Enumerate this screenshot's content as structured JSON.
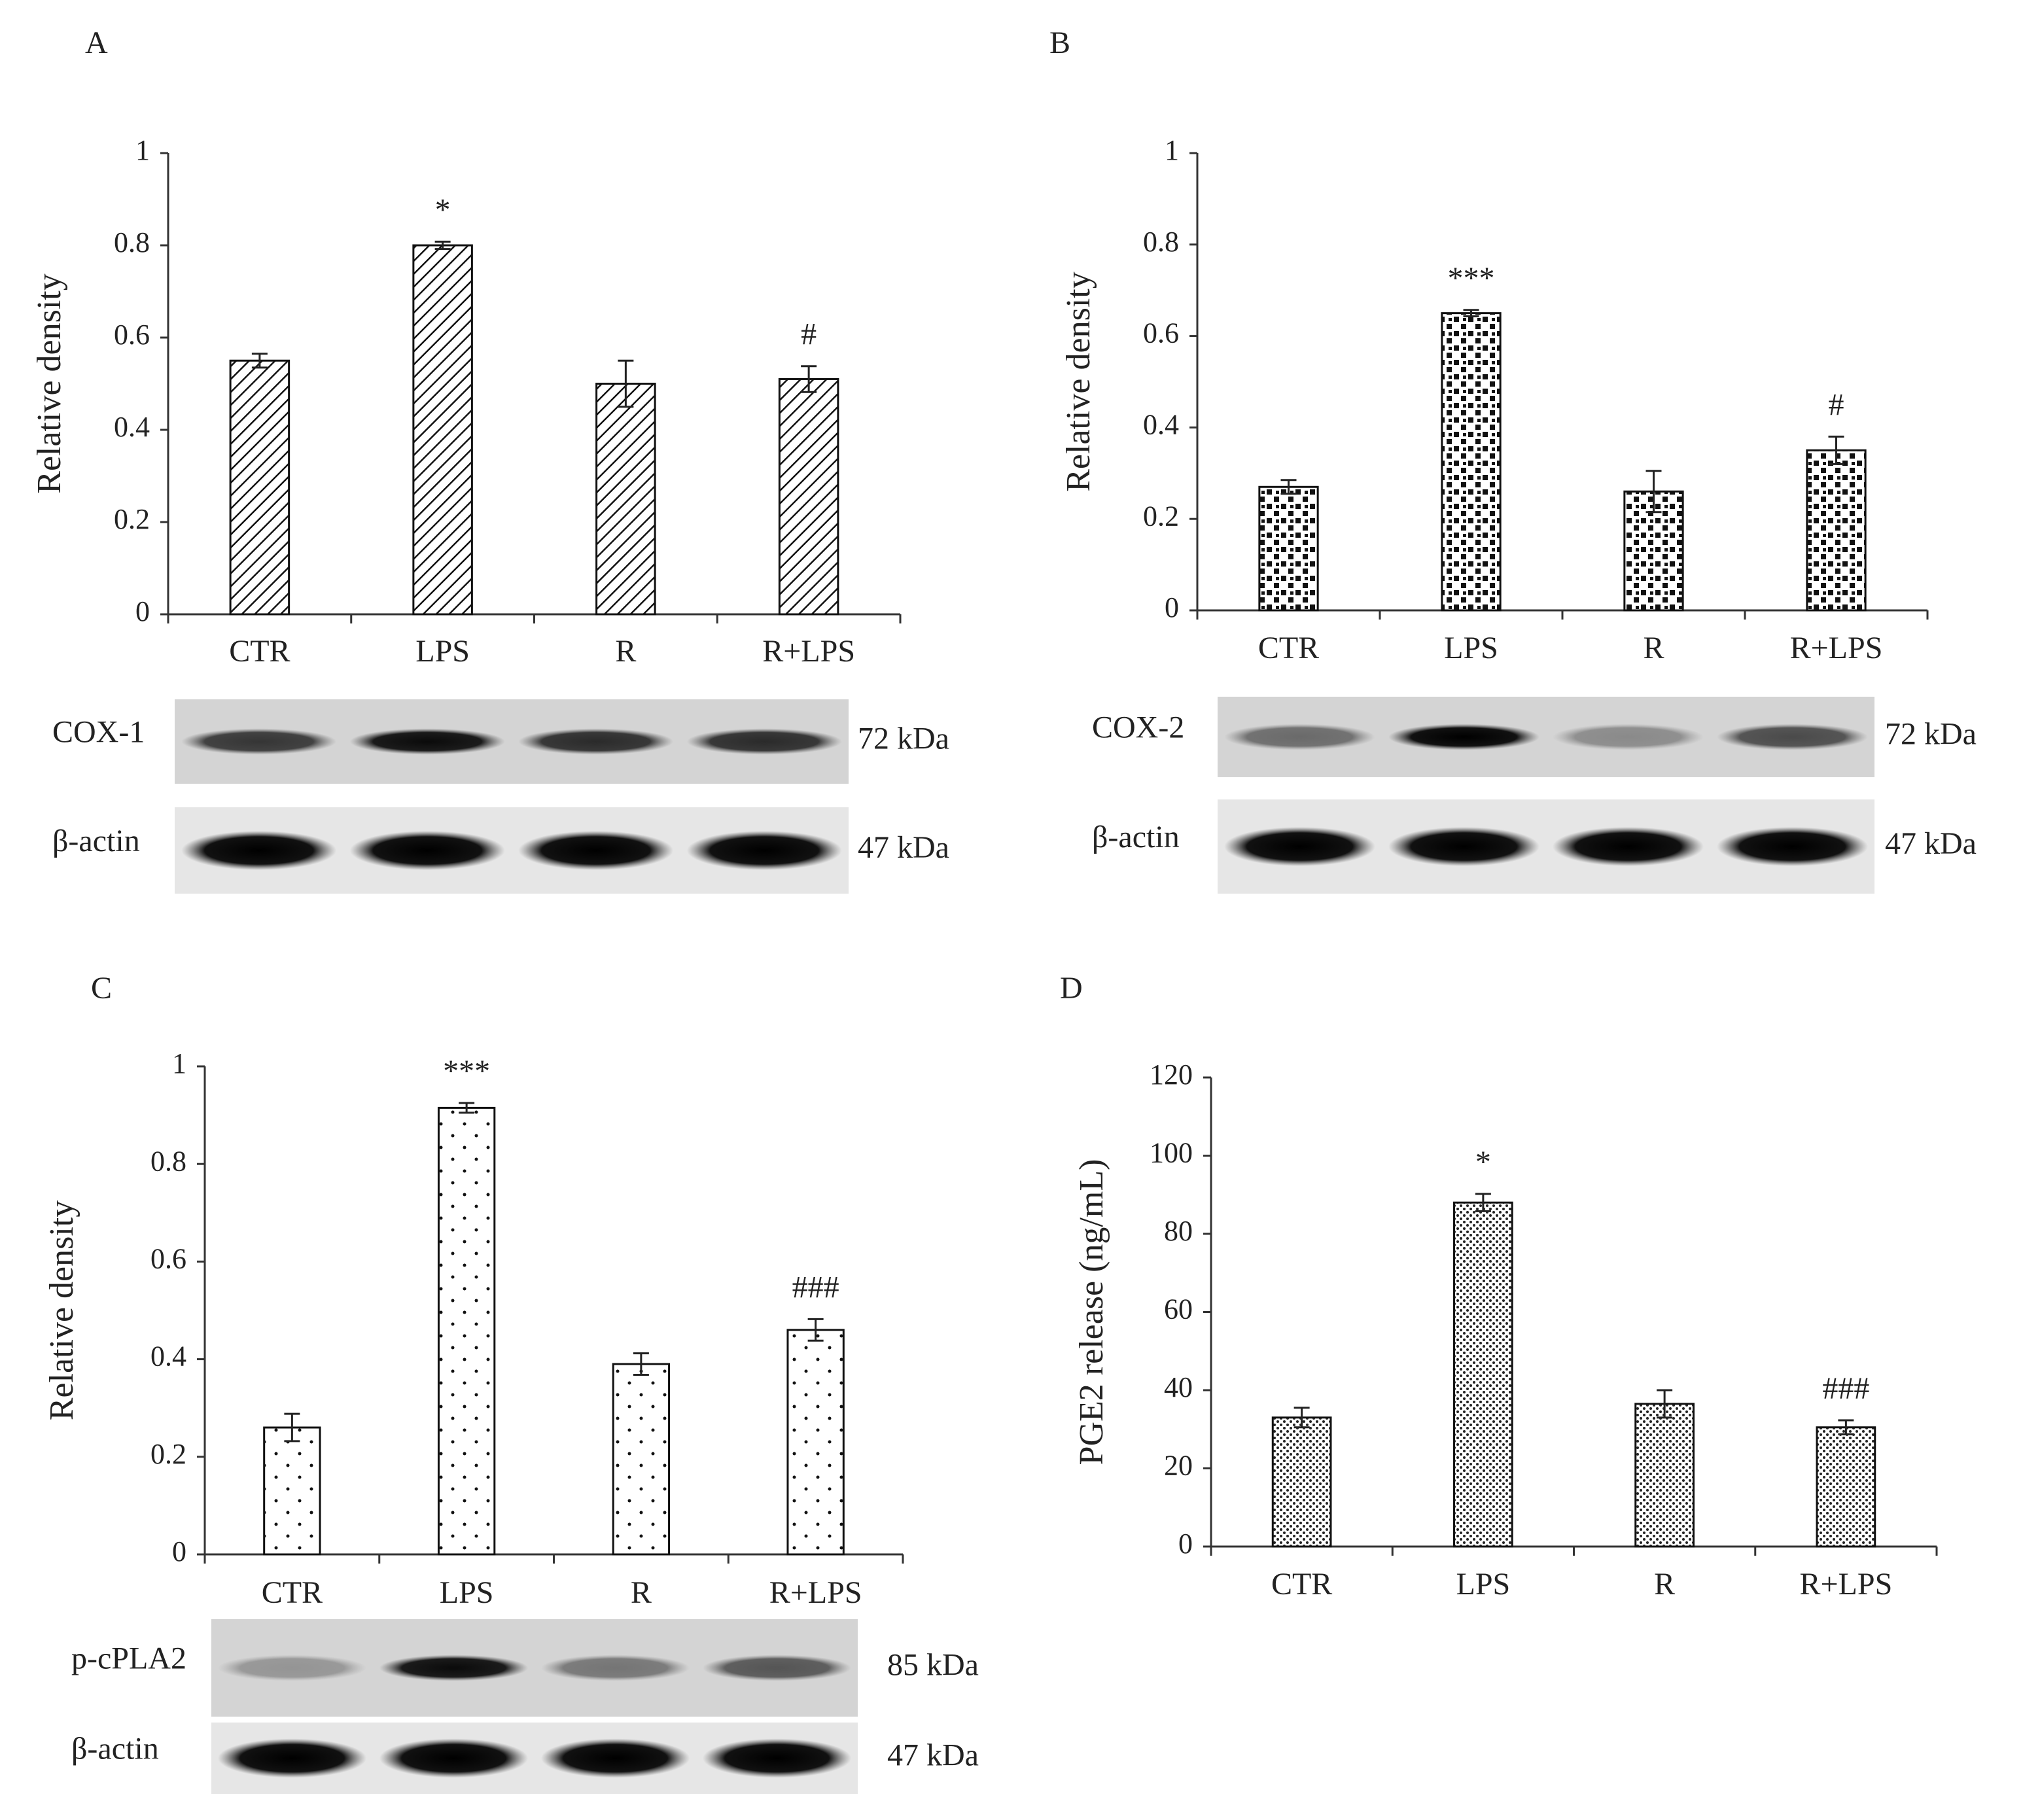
{
  "chart_data": [
    {
      "type": "bar",
      "panel": "A",
      "y_label": "Relative density",
      "pattern": "hatch",
      "categories": [
        "CTR",
        "LPS",
        "R",
        "R+LPS"
      ],
      "values": [
        0.55,
        0.8,
        0.5,
        0.51
      ],
      "errors": [
        0.015,
        0.008,
        0.05,
        0.028
      ],
      "annotations": [
        null,
        "*",
        null,
        "#"
      ],
      "ylim": [
        0,
        1
      ],
      "yticks": [
        0,
        0.2,
        0.4,
        0.6,
        0.8,
        1
      ],
      "blots": [
        {
          "label": "COX-1",
          "size": "72 kDa"
        },
        {
          "label": "β-actin",
          "size": "47 kDa"
        }
      ]
    },
    {
      "type": "bar",
      "panel": "B",
      "y_label": "Relative density",
      "pattern": "checker",
      "categories": [
        "CTR",
        "LPS",
        "R",
        "R+LPS"
      ],
      "values": [
        0.27,
        0.65,
        0.26,
        0.35
      ],
      "errors": [
        0.015,
        0.007,
        0.045,
        0.03
      ],
      "annotations": [
        null,
        "***",
        null,
        "#"
      ],
      "ylim": [
        0,
        1
      ],
      "yticks": [
        0,
        0.2,
        0.4,
        0.6,
        0.8,
        1
      ],
      "blots": [
        {
          "label": "COX-2",
          "size": "72 kDa"
        },
        {
          "label": "β-actin",
          "size": "47 kDa"
        }
      ]
    },
    {
      "type": "bar",
      "panel": "C",
      "y_label": "Relative density",
      "pattern": "sparse-dots",
      "categories": [
        "CTR",
        "LPS",
        "R",
        "R+LPS"
      ],
      "values": [
        0.26,
        0.915,
        0.39,
        0.46
      ],
      "errors": [
        0.028,
        0.01,
        0.022,
        0.022
      ],
      "annotations": [
        null,
        "***",
        null,
        "###"
      ],
      "ylim": [
        0,
        1
      ],
      "yticks": [
        0,
        0.2,
        0.4,
        0.6,
        0.8,
        1
      ],
      "blots": [
        {
          "label": "p-cPLA2",
          "size": "85 kDa"
        },
        {
          "label": "β-actin",
          "size": "47 kDa"
        }
      ]
    },
    {
      "type": "bar",
      "panel": "D",
      "y_label": "PGE2 release (ng/mL)",
      "pattern": "dense-dots",
      "categories": [
        "CTR",
        "LPS",
        "R",
        "R+LPS"
      ],
      "values": [
        33,
        88,
        36.5,
        30.5
      ],
      "errors": [
        2.5,
        2.2,
        3.5,
        1.8
      ],
      "annotations": [
        null,
        "*",
        null,
        "###"
      ],
      "ylim": [
        0,
        120
      ],
      "yticks": [
        0,
        20,
        40,
        60,
        80,
        100,
        120
      ]
    }
  ]
}
